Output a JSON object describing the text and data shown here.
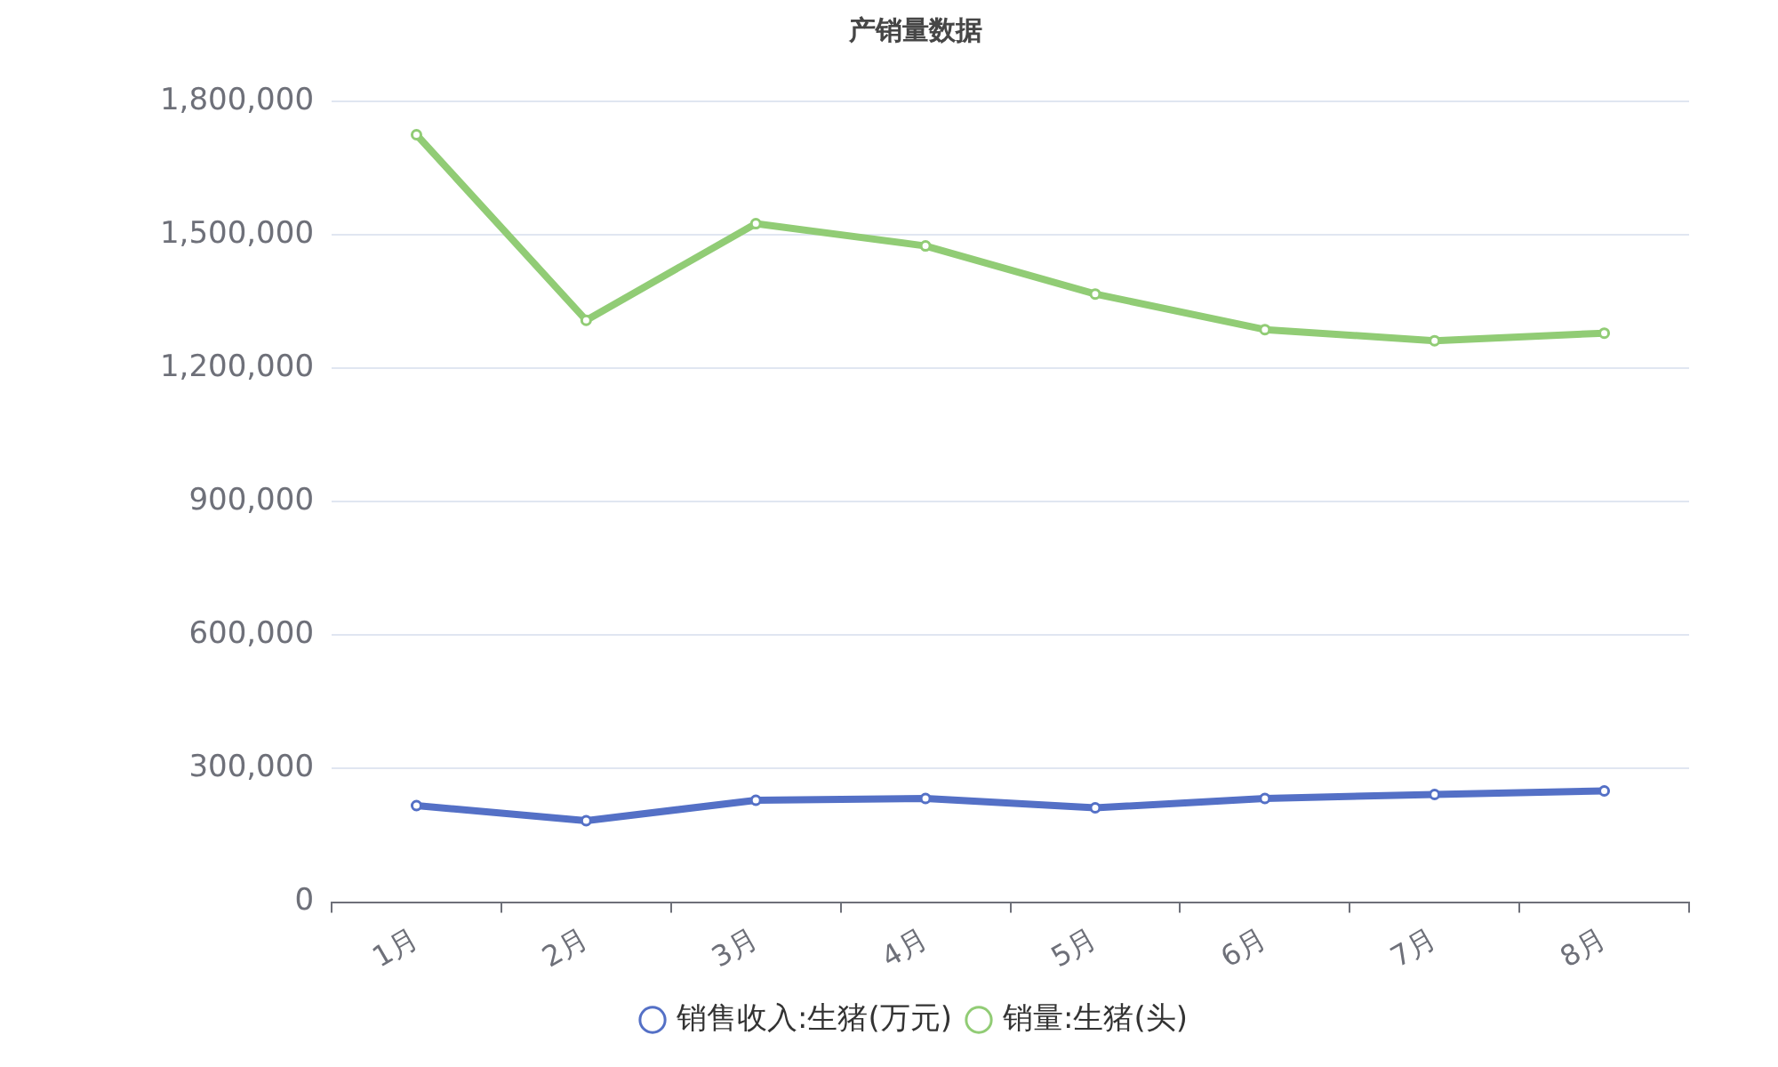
{
  "chart_data": {
    "type": "line",
    "title": "产销量数据",
    "categories": [
      "1月",
      "2月",
      "3月",
      "4月",
      "5月",
      "6月",
      "7月",
      "8月"
    ],
    "series": [
      {
        "name": "销售收入:生猪(万元)",
        "color": "#5470c6",
        "values": [
          217000,
          183000,
          229000,
          233000,
          212000,
          233000,
          242000,
          250000
        ]
      },
      {
        "name": "销量:生猪(头)",
        "color": "#91cc75",
        "values": [
          1725000,
          1308000,
          1525000,
          1475000,
          1367000,
          1287000,
          1262000,
          1279000
        ]
      }
    ],
    "ylim": [
      0,
      1800000
    ],
    "yticks": [
      0,
      {
        "value": 300000,
        "label": "300,000"
      },
      {
        "value": 600000,
        "label": "600,000"
      },
      {
        "value": 900000,
        "label": "900,000"
      },
      {
        "value": 1200000,
        "label": "1,200,000"
      },
      {
        "value": 1500000,
        "label": "1,500,000"
      },
      {
        "value": 1800000,
        "label": "1,800,000"
      }
    ],
    "grid": "y",
    "legend": "bottom",
    "marker": "circle",
    "line_style": "solid"
  }
}
